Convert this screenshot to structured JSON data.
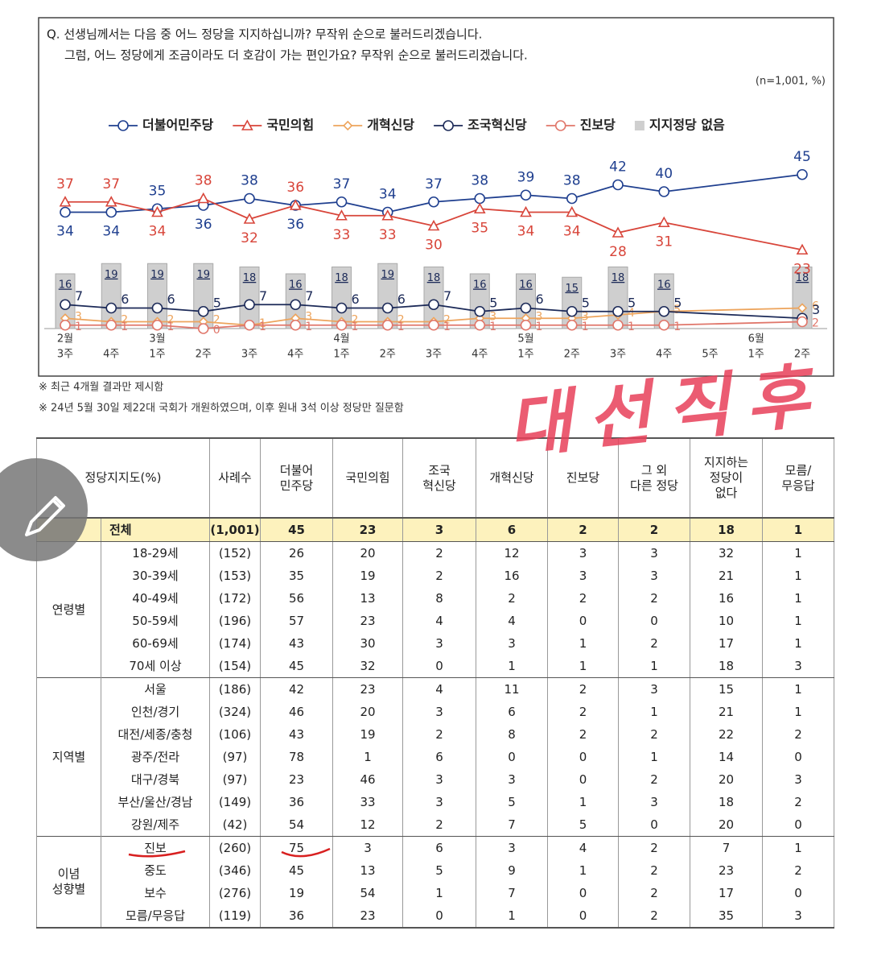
{
  "question": [
    "Q. 선생님께서는 다음 중 어느 정당을 지지하십니까? 무작위 순으로 불러드리겠습니다.",
    "그럼, 어느 정당에게 조금이라도 더 호감이 가는 편인가요? 무작위 순으로 불러드리겠습니다."
  ],
  "chart_data": {
    "type": "line",
    "sample_note": "(n=1,001, %)",
    "categories": [
      [
        "2월",
        "3주"
      ],
      [
        "4주"
      ],
      [
        "3월",
        "1주"
      ],
      [
        "2주"
      ],
      [
        "3주"
      ],
      [
        "4주"
      ],
      [
        "4월",
        "1주"
      ],
      [
        "2주"
      ],
      [
        "3주"
      ],
      [
        "4주"
      ],
      [
        "5월",
        "1주"
      ],
      [
        "2주"
      ],
      [
        "3주"
      ],
      [
        "4주"
      ],
      [
        "5주"
      ],
      [
        "6월",
        "1주"
      ],
      [
        "2주"
      ]
    ],
    "series": [
      {
        "name": "지지정당 없음",
        "type": "bar",
        "color": "#cfcfcf",
        "values": [
          16,
          19,
          19,
          19,
          18,
          16,
          18,
          19,
          18,
          16,
          16,
          15,
          18,
          16,
          null,
          null,
          18
        ]
      },
      {
        "name": "더불어민주당",
        "type": "line",
        "marker": "circle",
        "color": "#1f3f8f",
        "values": [
          34,
          34,
          35,
          36,
          38,
          36,
          37,
          34,
          37,
          38,
          39,
          38,
          42,
          40,
          null,
          null,
          45
        ]
      },
      {
        "name": "국민의힘",
        "type": "line",
        "marker": "triangle",
        "color": "#d8453a",
        "values": [
          37,
          37,
          34,
          38,
          32,
          36,
          33,
          33,
          30,
          35,
          34,
          34,
          28,
          31,
          null,
          null,
          23
        ]
      },
      {
        "name": "개혁신당",
        "type": "line",
        "marker": "diamond",
        "color": "#eda45c",
        "values": [
          3,
          2,
          2,
          2,
          1,
          3,
          2,
          2,
          2,
          3,
          3,
          3,
          4,
          5,
          null,
          null,
          6
        ]
      },
      {
        "name": "조국혁신당",
        "type": "line",
        "marker": "circle",
        "color": "#1c2a58",
        "values": [
          7,
          6,
          6,
          5,
          7,
          7,
          6,
          6,
          7,
          5,
          6,
          5,
          5,
          5,
          null,
          null,
          3
        ]
      },
      {
        "name": "진보당",
        "type": "line",
        "marker": "circle",
        "color": "#e0766a",
        "values": [
          1,
          1,
          1,
          0,
          1,
          1,
          1,
          1,
          1,
          1,
          1,
          1,
          1,
          1,
          null,
          null,
          2
        ]
      }
    ]
  },
  "notes": [
    "※ 최근 4개월 결과만 제시함",
    "※ 24년 5월 30일 제22대 국회가 개원하였으며, 이후 원내 3석 이상 정당만 질문함"
  ],
  "annotation": "대선직후",
  "table": {
    "header": [
      "정당지지도(%)",
      "사례수",
      "더불어\n민주당",
      "국민의힘",
      "조국\n혁신당",
      "개혁신당",
      "진보당",
      "그 외\n다른 정당",
      "지지하는\n정당이\n없다",
      "모름/\n무응답"
    ],
    "total": [
      "전체",
      "(1,001)",
      "45",
      "23",
      "3",
      "6",
      "2",
      "2",
      "18",
      "1"
    ],
    "groups": [
      {
        "label": "연령별",
        "rows": [
          [
            "18-29세",
            "(152)",
            "26",
            "20",
            "2",
            "12",
            "3",
            "3",
            "32",
            "1"
          ],
          [
            "30-39세",
            "(153)",
            "35",
            "19",
            "2",
            "16",
            "3",
            "3",
            "21",
            "1"
          ],
          [
            "40-49세",
            "(172)",
            "56",
            "13",
            "8",
            "2",
            "2",
            "2",
            "16",
            "1"
          ],
          [
            "50-59세",
            "(196)",
            "57",
            "23",
            "4",
            "4",
            "0",
            "0",
            "10",
            "1"
          ],
          [
            "60-69세",
            "(174)",
            "43",
            "30",
            "3",
            "3",
            "1",
            "2",
            "17",
            "1"
          ],
          [
            "70세 이상",
            "(154)",
            "45",
            "32",
            "0",
            "1",
            "1",
            "1",
            "18",
            "3"
          ]
        ]
      },
      {
        "label": "지역별",
        "rows": [
          [
            "서울",
            "(186)",
            "42",
            "23",
            "4",
            "11",
            "2",
            "3",
            "15",
            "1"
          ],
          [
            "인천/경기",
            "(324)",
            "46",
            "20",
            "3",
            "6",
            "2",
            "1",
            "21",
            "1"
          ],
          [
            "대전/세종/충청",
            "(106)",
            "43",
            "19",
            "2",
            "8",
            "2",
            "2",
            "22",
            "2"
          ],
          [
            "광주/전라",
            "(97)",
            "78",
            "1",
            "6",
            "0",
            "0",
            "1",
            "14",
            "0"
          ],
          [
            "대구/경북",
            "(97)",
            "23",
            "46",
            "3",
            "3",
            "0",
            "2",
            "20",
            "3"
          ],
          [
            "부산/울산/경남",
            "(149)",
            "36",
            "33",
            "3",
            "5",
            "1",
            "3",
            "18",
            "2"
          ],
          [
            "강원/제주",
            "(42)",
            "54",
            "12",
            "2",
            "7",
            "5",
            "0",
            "20",
            "0"
          ]
        ]
      },
      {
        "label": "이념\n성향별",
        "rows": [
          [
            "진보",
            "(260)",
            "75",
            "3",
            "6",
            "3",
            "4",
            "2",
            "7",
            "1"
          ],
          [
            "중도",
            "(346)",
            "45",
            "13",
            "5",
            "9",
            "1",
            "2",
            "23",
            "2"
          ],
          [
            "보수",
            "(276)",
            "19",
            "54",
            "1",
            "7",
            "0",
            "2",
            "17",
            "0"
          ],
          [
            "모름/무응답",
            "(119)",
            "36",
            "23",
            "0",
            "1",
            "0",
            "2",
            "35",
            "3"
          ]
        ]
      }
    ]
  }
}
